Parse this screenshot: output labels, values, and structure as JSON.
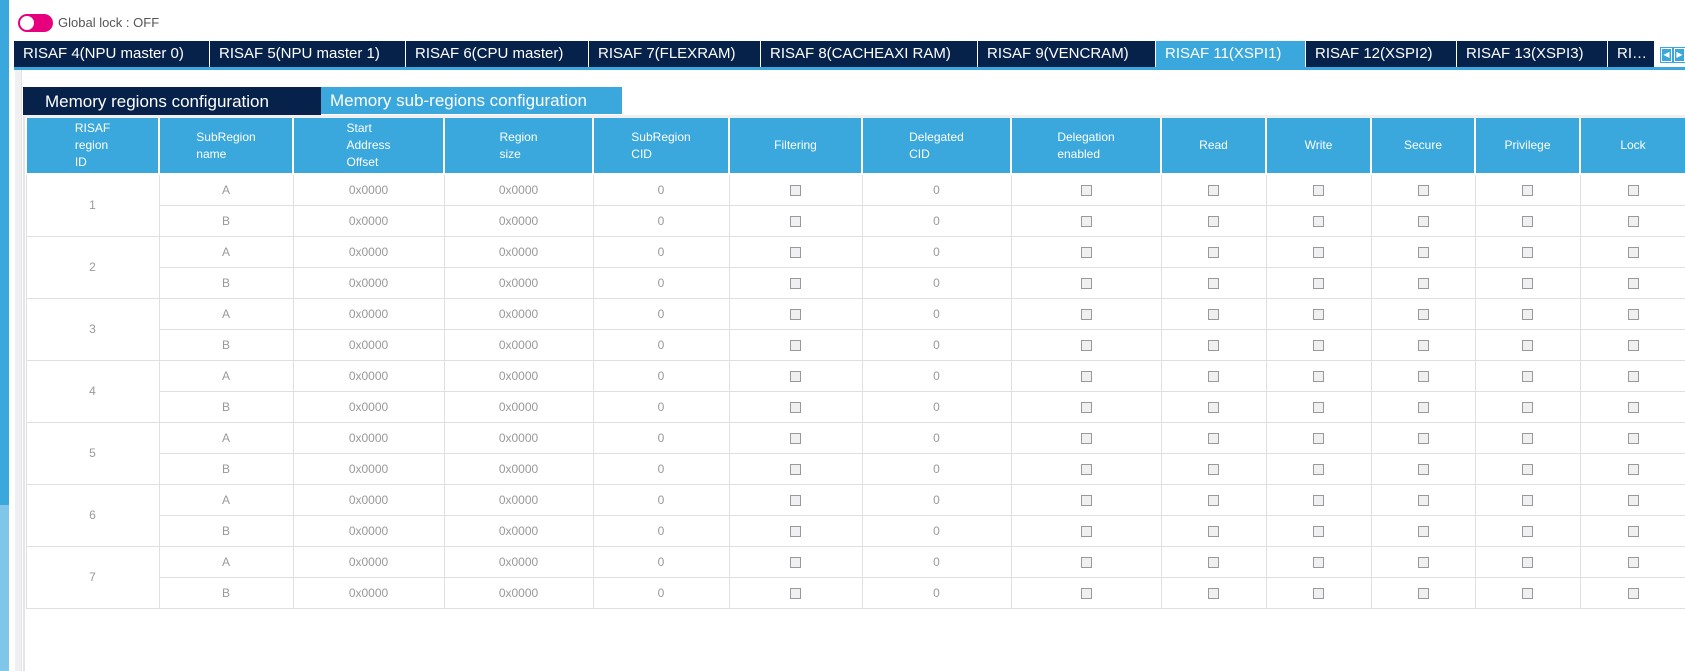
{
  "global_lock": {
    "label": "Global lock : OFF",
    "state": "off",
    "color": "#e6007e"
  },
  "tabs": [
    {
      "label": "RISAF 4(NPU master 0)",
      "w": 196
    },
    {
      "label": "RISAF 5(NPU master 1)",
      "w": 196
    },
    {
      "label": "RISAF 6(CPU master)",
      "w": 183
    },
    {
      "label": "RISAF 7(FLEXRAM)",
      "w": 172
    },
    {
      "label": "RISAF 8(CACHEAXI RAM)",
      "w": 217
    },
    {
      "label": "RISAF 9(VENCRAM)",
      "w": 178
    },
    {
      "label": "RISAF 11(XSPI1)",
      "w": 150,
      "active": true
    },
    {
      "label": "RISAF 12(XSPI2)",
      "w": 151
    },
    {
      "label": "RISAF 13(XSPI3)",
      "w": 151
    },
    {
      "label": "RI…",
      "w": 47
    }
  ],
  "subtabs": {
    "regions": "Memory regions configuration",
    "subregions": "Memory sub-regions configuration",
    "active": "subregions"
  },
  "colors": {
    "accent": "#3aa8dc",
    "navy": "#06224a"
  },
  "columns": [
    "RISAF\nregion\nID",
    "SubRegion\nname",
    "Start\nAddress\nOffset",
    "Region\nsize",
    "SubRegion\nCID",
    "Filtering",
    "Delegated\nCID",
    "Delegation\nenabled",
    "Read",
    "Write",
    "Secure",
    "Privilege",
    "Lock"
  ],
  "rows": [
    {
      "id": "1",
      "subregions": [
        {
          "name": "A",
          "start": "0x0000",
          "size": "0x0000",
          "cid": "0",
          "delegated_cid": "0"
        },
        {
          "name": "B",
          "start": "0x0000",
          "size": "0x0000",
          "cid": "0",
          "delegated_cid": "0"
        }
      ]
    },
    {
      "id": "2",
      "subregions": [
        {
          "name": "A",
          "start": "0x0000",
          "size": "0x0000",
          "cid": "0",
          "delegated_cid": "0"
        },
        {
          "name": "B",
          "start": "0x0000",
          "size": "0x0000",
          "cid": "0",
          "delegated_cid": "0"
        }
      ]
    },
    {
      "id": "3",
      "subregions": [
        {
          "name": "A",
          "start": "0x0000",
          "size": "0x0000",
          "cid": "0",
          "delegated_cid": "0"
        },
        {
          "name": "B",
          "start": "0x0000",
          "size": "0x0000",
          "cid": "0",
          "delegated_cid": "0"
        }
      ]
    },
    {
      "id": "4",
      "subregions": [
        {
          "name": "A",
          "start": "0x0000",
          "size": "0x0000",
          "cid": "0",
          "delegated_cid": "0"
        },
        {
          "name": "B",
          "start": "0x0000",
          "size": "0x0000",
          "cid": "0",
          "delegated_cid": "0"
        }
      ]
    },
    {
      "id": "5",
      "subregions": [
        {
          "name": "A",
          "start": "0x0000",
          "size": "0x0000",
          "cid": "0",
          "delegated_cid": "0"
        },
        {
          "name": "B",
          "start": "0x0000",
          "size": "0x0000",
          "cid": "0",
          "delegated_cid": "0"
        }
      ]
    },
    {
      "id": "6",
      "subregions": [
        {
          "name": "A",
          "start": "0x0000",
          "size": "0x0000",
          "cid": "0",
          "delegated_cid": "0"
        },
        {
          "name": "B",
          "start": "0x0000",
          "size": "0x0000",
          "cid": "0",
          "delegated_cid": "0"
        }
      ]
    },
    {
      "id": "7",
      "subregions": [
        {
          "name": "A",
          "start": "0x0000",
          "size": "0x0000",
          "cid": "0",
          "delegated_cid": "0"
        },
        {
          "name": "B",
          "start": "0x0000",
          "size": "0x0000",
          "cid": "0",
          "delegated_cid": "0"
        }
      ]
    }
  ],
  "checkbox_columns": [
    "filtering",
    "delegation_enabled",
    "read",
    "write",
    "secure",
    "privilege",
    "lock"
  ],
  "checkbox_default": false
}
